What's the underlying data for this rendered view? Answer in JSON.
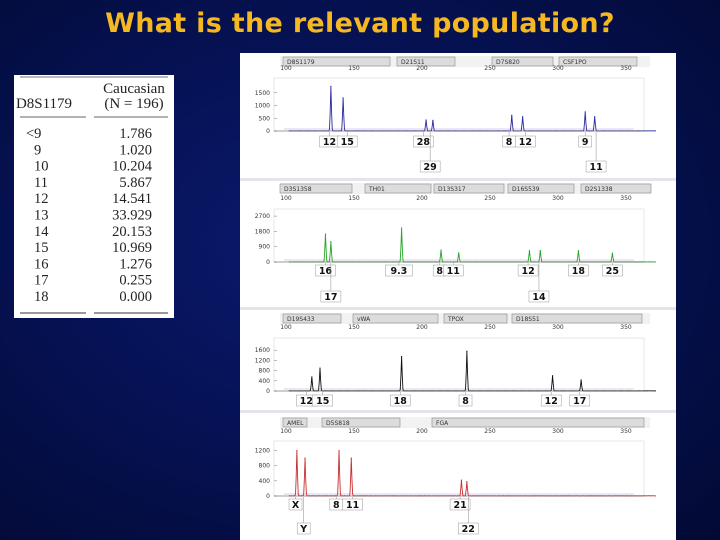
{
  "title": "What is the relevant population?",
  "chart_data": [
    {
      "type": "table",
      "header": {
        "locus": "D8S1179",
        "population": "Caucasian",
        "n": "(N = 196)"
      },
      "rows": [
        {
          "allele": "<9",
          "freq": "1.786"
        },
        {
          "allele": "9",
          "freq": "1.020"
        },
        {
          "allele": "10",
          "freq": "10.204"
        },
        {
          "allele": "11",
          "freq": "5.867"
        },
        {
          "allele": "12",
          "freq": "14.541"
        },
        {
          "allele": "13",
          "freq": "33.929"
        },
        {
          "allele": "14",
          "freq": "20.153"
        },
        {
          "allele": "15",
          "freq": "10.969"
        },
        {
          "allele": "16",
          "freq": "1.276"
        },
        {
          "allele": "17",
          "freq": "0.255"
        },
        {
          "allele": "18",
          "freq": "0.000"
        }
      ]
    },
    {
      "type": "line",
      "color": "#2a2aa0",
      "loci": [
        "D8S1179",
        "D21S11",
        "D7S820",
        "CSF1PO"
      ],
      "x_ticks": [
        "100",
        "150",
        "200",
        "250",
        "300",
        "350"
      ],
      "y_ticks": [
        "1500",
        "1000",
        "500",
        "0"
      ],
      "ylim": [
        0,
        2000
      ],
      "peaks": [
        {
          "x": 133,
          "y": 1750
        },
        {
          "x": 142,
          "y": 1300
        },
        {
          "x": 203,
          "y": 430
        },
        {
          "x": 208,
          "y": 420
        },
        {
          "x": 266,
          "y": 620
        },
        {
          "x": 274,
          "y": 560
        },
        {
          "x": 320,
          "y": 750
        },
        {
          "x": 327,
          "y": 560
        }
      ],
      "labels": [
        {
          "x": 132,
          "text": "12",
          "row": 1
        },
        {
          "x": 145,
          "text": "15",
          "row": 1
        },
        {
          "x": 201,
          "text": "28",
          "row": 1
        },
        {
          "x": 206,
          "text": "29",
          "row": 2
        },
        {
          "x": 264,
          "text": "8",
          "row": 1
        },
        {
          "x": 276,
          "text": "12",
          "row": 1
        },
        {
          "x": 320,
          "text": "9",
          "row": 1
        },
        {
          "x": 328,
          "text": "11",
          "row": 2
        }
      ]
    },
    {
      "type": "line",
      "color": "#28a428",
      "loci": [
        "D3S1358",
        "TH01",
        "D13S317",
        "D16S539",
        "D2S1338"
      ],
      "x_ticks": [
        "100",
        "150",
        "200",
        "250",
        "300",
        "350"
      ],
      "y_ticks": [
        "2700",
        "1800",
        "900",
        "0"
      ],
      "ylim": [
        0,
        3000
      ],
      "peaks": [
        {
          "x": 129,
          "y": 1650
        },
        {
          "x": 133,
          "y": 1200
        },
        {
          "x": 185,
          "y": 2000
        },
        {
          "x": 214,
          "y": 700
        },
        {
          "x": 227,
          "y": 540
        },
        {
          "x": 279,
          "y": 680
        },
        {
          "x": 287,
          "y": 680
        },
        {
          "x": 315,
          "y": 670
        },
        {
          "x": 340,
          "y": 520
        }
      ],
      "labels": [
        {
          "x": 129,
          "text": "16",
          "row": 1
        },
        {
          "x": 133,
          "text": "17",
          "row": 2
        },
        {
          "x": 183,
          "text": "9.3",
          "row": 1
        },
        {
          "x": 213,
          "text": "8",
          "row": 1
        },
        {
          "x": 223,
          "text": "11",
          "row": 1
        },
        {
          "x": 278,
          "text": "12",
          "row": 1
        },
        {
          "x": 286,
          "text": "14",
          "row": 2
        },
        {
          "x": 315,
          "text": "18",
          "row": 1
        },
        {
          "x": 340,
          "text": "25",
          "row": 1
        }
      ]
    },
    {
      "type": "line",
      "color": "#111111",
      "loci": [
        "D19S433",
        "vWA",
        "TPOX",
        "D18S51"
      ],
      "x_ticks": [
        "100",
        "150",
        "200",
        "250",
        "300",
        "350"
      ],
      "y_ticks": [
        "1600",
        "1200",
        "800",
        "400",
        "0"
      ],
      "ylim": [
        0,
        2000
      ],
      "peaks": [
        {
          "x": 119,
          "y": 550
        },
        {
          "x": 125,
          "y": 900
        },
        {
          "x": 185,
          "y": 1350
        },
        {
          "x": 233,
          "y": 1560
        },
        {
          "x": 296,
          "y": 600
        },
        {
          "x": 317,
          "y": 430
        }
      ],
      "labels": [
        {
          "x": 115,
          "text": "12",
          "row": 1
        },
        {
          "x": 127,
          "text": "15",
          "row": 1
        },
        {
          "x": 184,
          "text": "18",
          "row": 1
        },
        {
          "x": 232,
          "text": "8",
          "row": 1
        },
        {
          "x": 295,
          "text": "12",
          "row": 1
        },
        {
          "x": 316,
          "text": "17",
          "row": 1
        }
      ]
    },
    {
      "type": "line",
      "color": "#c83030",
      "loci": [
        "AMEL",
        "D5S818",
        "FGA"
      ],
      "x_ticks": [
        "100",
        "150",
        "200",
        "250",
        "300",
        "350"
      ],
      "y_ticks": [
        "1200",
        "800",
        "400",
        "0"
      ],
      "ylim": [
        0,
        1400
      ],
      "peaks": [
        {
          "x": 108,
          "y": 1200
        },
        {
          "x": 114,
          "y": 1000
        },
        {
          "x": 139,
          "y": 1200
        },
        {
          "x": 148,
          "y": 1000
        },
        {
          "x": 229,
          "y": 420
        },
        {
          "x": 233,
          "y": 380
        }
      ],
      "labels": [
        {
          "x": 107,
          "text": "X",
          "row": 1
        },
        {
          "x": 113,
          "text": "Y",
          "row": 2
        },
        {
          "x": 137,
          "text": "8",
          "row": 1
        },
        {
          "x": 149,
          "text": "11",
          "row": 1
        },
        {
          "x": 228,
          "text": "21",
          "row": 1
        },
        {
          "x": 234,
          "text": "22",
          "row": 2
        }
      ]
    }
  ]
}
